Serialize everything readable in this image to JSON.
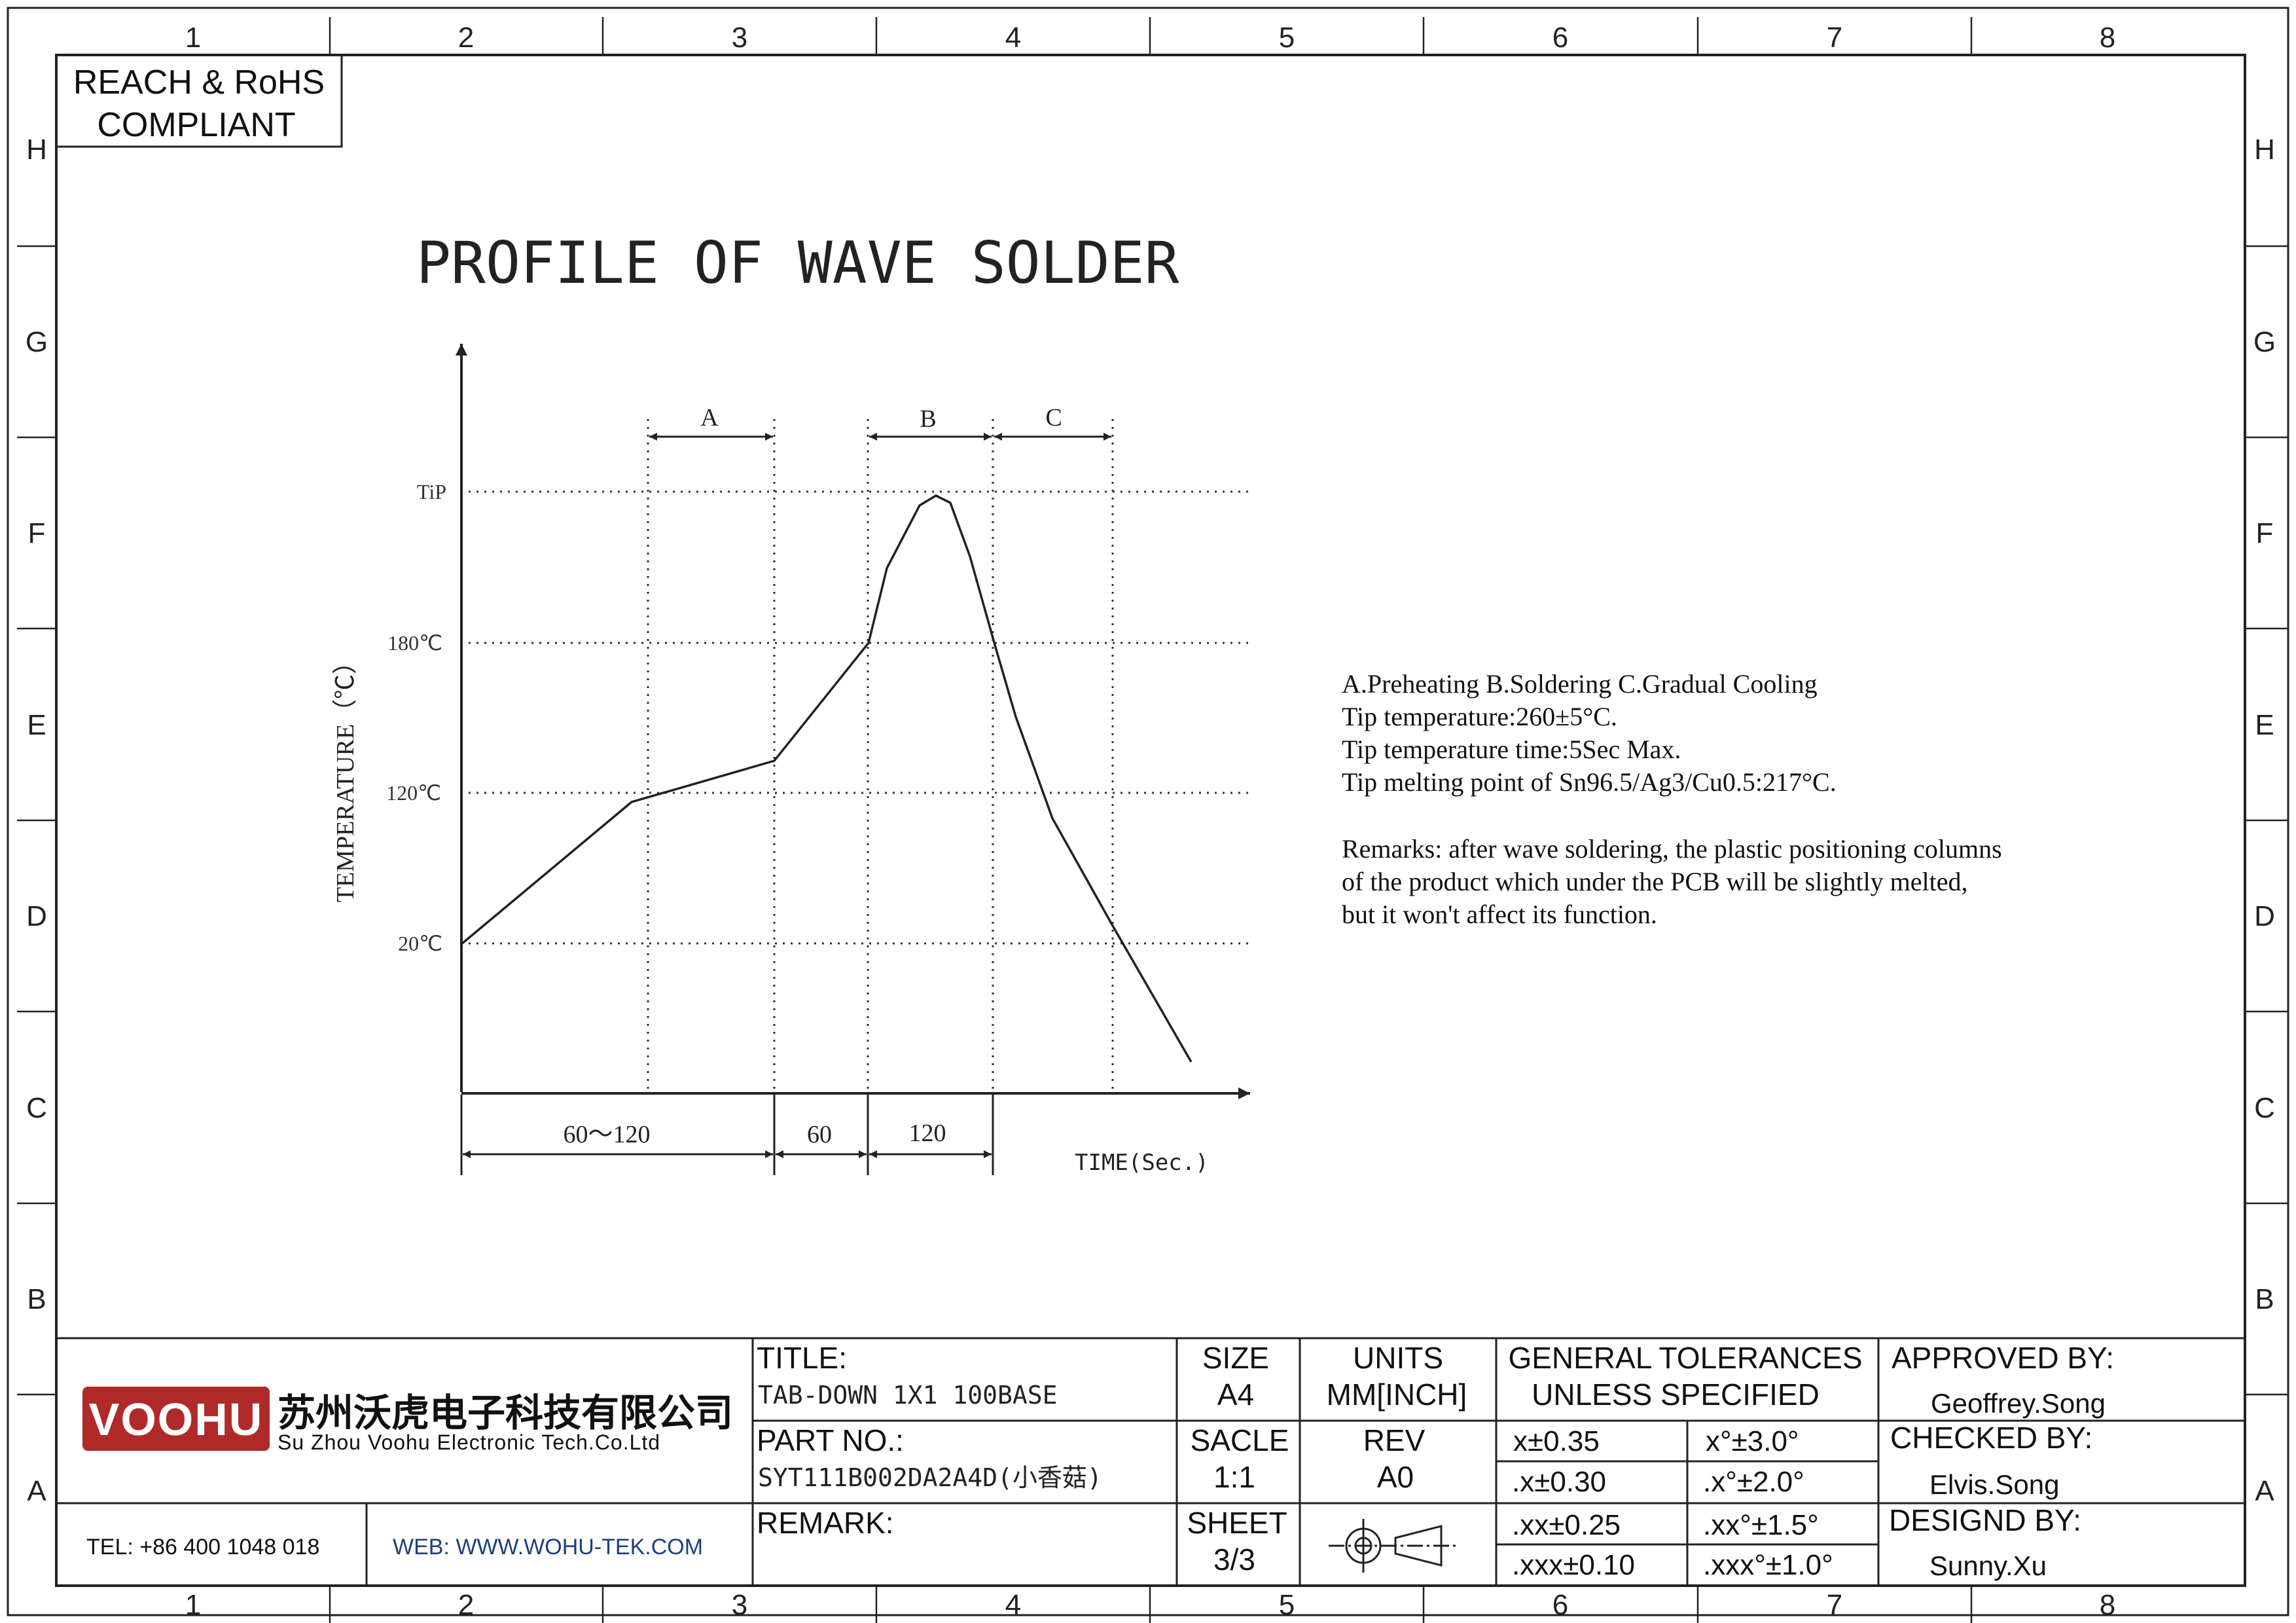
{
  "compliance": {
    "line1": "REACH & RoHS",
    "line2": "COMPLIANT"
  },
  "title": "PROFILE OF WAVE SOLDER",
  "border": {
    "columns": [
      "1",
      "2",
      "3",
      "4",
      "5",
      "6",
      "7",
      "8"
    ],
    "rows": [
      "H",
      "G",
      "F",
      "E",
      "D",
      "C",
      "B",
      "A"
    ]
  },
  "profile": {
    "zone_labels": [
      "A",
      "B",
      "C"
    ],
    "y_axis_label": "TEMPERATURE（℃）",
    "x_axis_label": "TIME(Sec.)",
    "temp_labels": [
      "TiP",
      "180℃",
      "120℃",
      "20℃"
    ],
    "time_labels": [
      "60～120",
      "60",
      "120"
    ]
  },
  "notes": {
    "lines": [
      "A.Preheating  B.Soldering  C.Gradual Cooling",
      "Tip temperature:260±5°C.",
      "Tip temperature time:5Sec Max.",
      "Tip melting point of Sn96.5/Ag3/Cu0.5:217°C."
    ],
    "remarks": [
      "Remarks: after wave soldering, the plastic positioning columns",
      "of the product  which under the PCB will be slightly melted,",
      "but it won't affect its function."
    ]
  },
  "title_block": {
    "logo_text": "VOOHU",
    "company_cn": "苏州沃虎电子科技有限公司",
    "company_en": "Su Zhou Voohu Electronic Tech.Co.Ltd",
    "tel": "TEL: +86 400 1048 018",
    "web": "WEB: WWW.WOHU-TEK.COM",
    "title_label": "TITLE:",
    "title_value": "TAB-DOWN 1X1 100BASE",
    "part_label": "PART NO.:",
    "part_value": "SYT111B002DA2A4D(小香菇)",
    "remark_label": "REMARK:",
    "size_label": "SIZE",
    "size_value": "A4",
    "units_label": "UNITS",
    "units_value": "MM[INCH]",
    "scale_label": "SACLE",
    "scale_value": "1:1",
    "rev_label": "REV",
    "rev_value": "A0",
    "sheet_label": "SHEET",
    "sheet_value": "3/3",
    "tol_header1": "GENERAL TOLERANCES",
    "tol_header2": "UNLESS SPECIFIED",
    "tolerances": [
      [
        "x±0.35",
        "x°±3.0°"
      ],
      [
        ".x±0.30",
        ".x°±2.0°"
      ],
      [
        ".xx±0.25",
        ".xx°±1.5°"
      ],
      [
        ".xxx±0.10",
        ".xxx°±1.0°"
      ]
    ],
    "approved_label": "APPROVED BY:",
    "approved_value": "Geoffrey.Song",
    "checked_label": "CHECKED BY:",
    "checked_value": "Elvis.Song",
    "designed_label": "DESIGND BY:",
    "designed_value": "Sunny.Xu"
  },
  "colors": {
    "line": "#222222",
    "brand": "#b02a2a",
    "web": "#1f3f7a"
  }
}
